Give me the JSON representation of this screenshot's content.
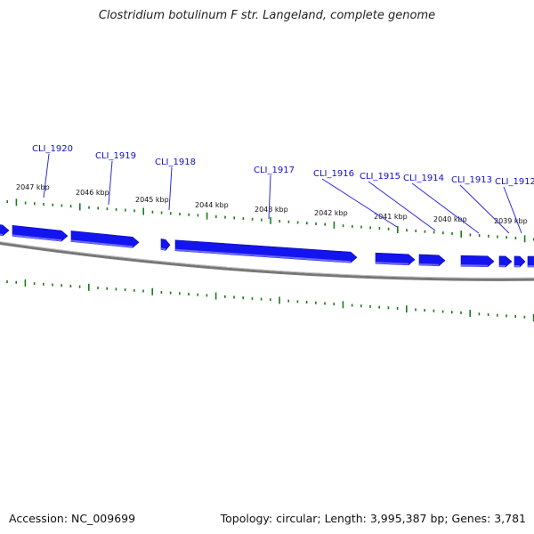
{
  "title": "Clostridium botulinum F str. Langeland, complete genome",
  "footer": {
    "accession": "Accession: NC_009699",
    "summary": "Topology: circular; Length: 3,995,387 bp; Genes: 3,781"
  },
  "colors": {
    "gene": "#1414ee",
    "tick": "#1a7a1a",
    "backbone": "#777777",
    "label": "#1010cc"
  },
  "kbp_labels": [
    "2047 kbp",
    "2046 kbp",
    "2045 kbp",
    "2044 kbp",
    "2043 kbp",
    "2042 kbp",
    "2041 kbp",
    "2040 kbp",
    "2039 kbp"
  ],
  "gene_labels": [
    "CLI_1920",
    "CLI_1919",
    "CLI_1918",
    "CLI_1917",
    "CLI_1916",
    "CLI_1915",
    "CLI_1914",
    "CLI_1913",
    "CLI_1912"
  ]
}
